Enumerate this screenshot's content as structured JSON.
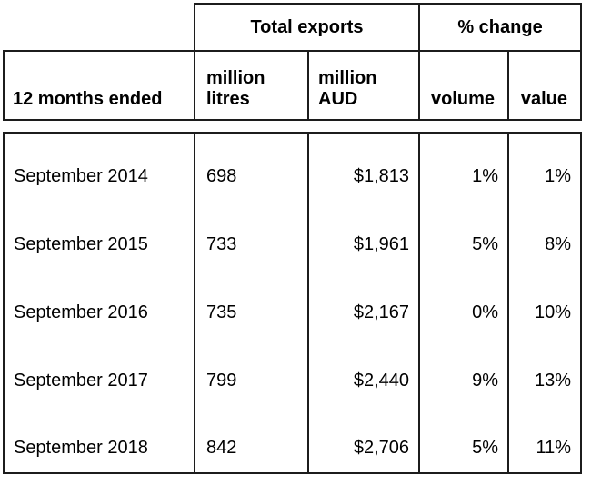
{
  "meta": {
    "background_color": "#ffffff",
    "border_color": "#1c1c1c",
    "text_color": "#000000"
  },
  "chart_data": {
    "type": "table",
    "column_groups": [
      {
        "label": "Total exports",
        "span": 2
      },
      {
        "label": "% change",
        "span": 2
      }
    ],
    "columns": {
      "period": "12 months ended",
      "million_litres": "million\nlitres",
      "million_aud": "million\nAUD",
      "volume": "volume",
      "value": "value"
    },
    "rows": [
      {
        "period": "September 2014",
        "million_litres": "698",
        "million_aud": "$1,813",
        "volume": "1%",
        "value": "1%"
      },
      {
        "period": "September 2015",
        "million_litres": "733",
        "million_aud": "$1,961",
        "volume": "5%",
        "value": "8%"
      },
      {
        "period": "September 2016",
        "million_litres": "735",
        "million_aud": "$2,167",
        "volume": "0%",
        "value": "10%"
      },
      {
        "period": "September 2017",
        "million_litres": "799",
        "million_aud": "$2,440",
        "volume": "9%",
        "value": "13%"
      },
      {
        "period": "September 2018",
        "million_litres": "842",
        "million_aud": "$2,706",
        "volume": "5%",
        "value": "11%"
      }
    ]
  }
}
